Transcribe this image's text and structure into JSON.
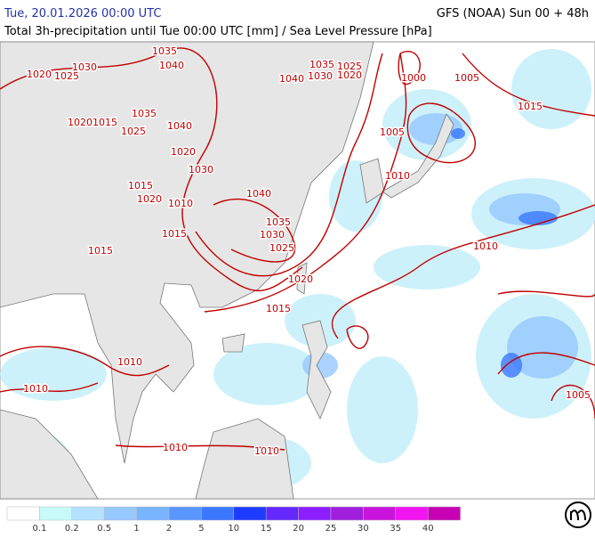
{
  "header": {
    "left": "Tue, 20.01.2026 00:00 UTC",
    "right": "GFS (NOAA) Sun 00 + 48h",
    "subtitle": "Total 3h-precipitation until Tue 00:00 UTC [mm] / Sea Level Pressure [hPa]"
  },
  "isobar_labels": [
    1035,
    1040,
    1030,
    1020,
    1025,
    1020,
    1015,
    1035,
    1025,
    1040,
    1020,
    1030,
    1015,
    1020,
    1010,
    1015,
    1015,
    1040,
    1035,
    1030,
    1025,
    1020,
    1015,
    1010,
    1010,
    1010,
    1010,
    1035,
    1025,
    1040,
    1030,
    1020,
    1000,
    1005,
    1005,
    1015,
    1010,
    1010,
    1005
  ],
  "legend": {
    "labels": [
      0.1,
      0.2,
      0.5,
      1,
      2,
      5,
      10,
      15,
      20,
      25,
      30,
      35,
      40
    ],
    "colors": [
      "#ffffff",
      "#c8fafa",
      "#b4e1ff",
      "#96c8ff",
      "#78b4ff",
      "#5a96ff",
      "#3c78ff",
      "#1e3cff",
      "#6428ff",
      "#8c1eff",
      "#a01edc",
      "#c814dc",
      "#f014f0",
      "#c800b4"
    ]
  }
}
